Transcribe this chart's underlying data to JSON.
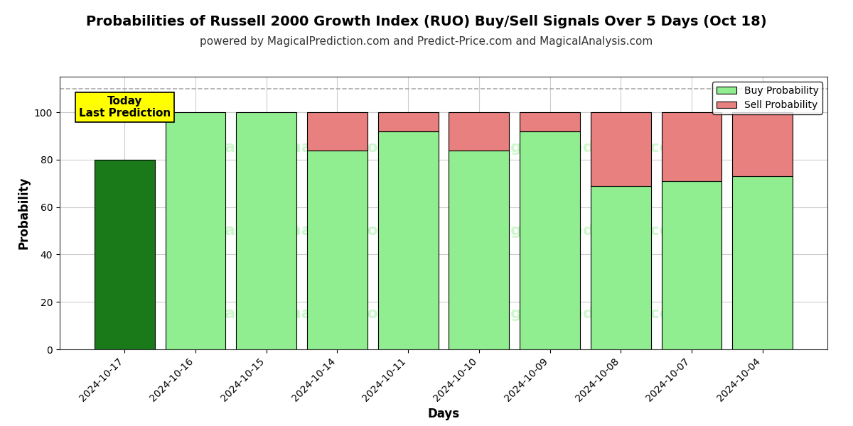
{
  "title": "Probabilities of Russell 2000 Growth Index (RUO) Buy/Sell Signals Over 5 Days (Oct 18)",
  "subtitle": "powered by MagicalPrediction.com and Predict-Price.com and MagicalAnalysis.com",
  "xlabel": "Days",
  "ylabel": "Probability",
  "dates": [
    "2024-10-17",
    "2024-10-16",
    "2024-10-15",
    "2024-10-14",
    "2024-10-11",
    "2024-10-10",
    "2024-10-09",
    "2024-10-08",
    "2024-10-07",
    "2024-10-04"
  ],
  "buy_values": [
    80,
    100,
    100,
    84,
    92,
    84,
    92,
    69,
    71,
    73
  ],
  "sell_values": [
    0,
    0,
    0,
    16,
    8,
    16,
    8,
    31,
    29,
    27
  ],
  "today_buy_color": "#1a7a1a",
  "buy_color": "#90ee90",
  "sell_color": "#e88080",
  "today_label": "Today\nLast Prediction",
  "today_label_bg": "#ffff00",
  "legend_buy": "Buy Probability",
  "legend_sell": "Sell Probability",
  "ylim": [
    0,
    115
  ],
  "yticks": [
    0,
    20,
    40,
    60,
    80,
    100
  ],
  "dashed_line_y": 110,
  "background_color": "#ffffff",
  "grid_color": "#cccccc",
  "bar_edge_color": "#000000",
  "bar_width": 0.85
}
